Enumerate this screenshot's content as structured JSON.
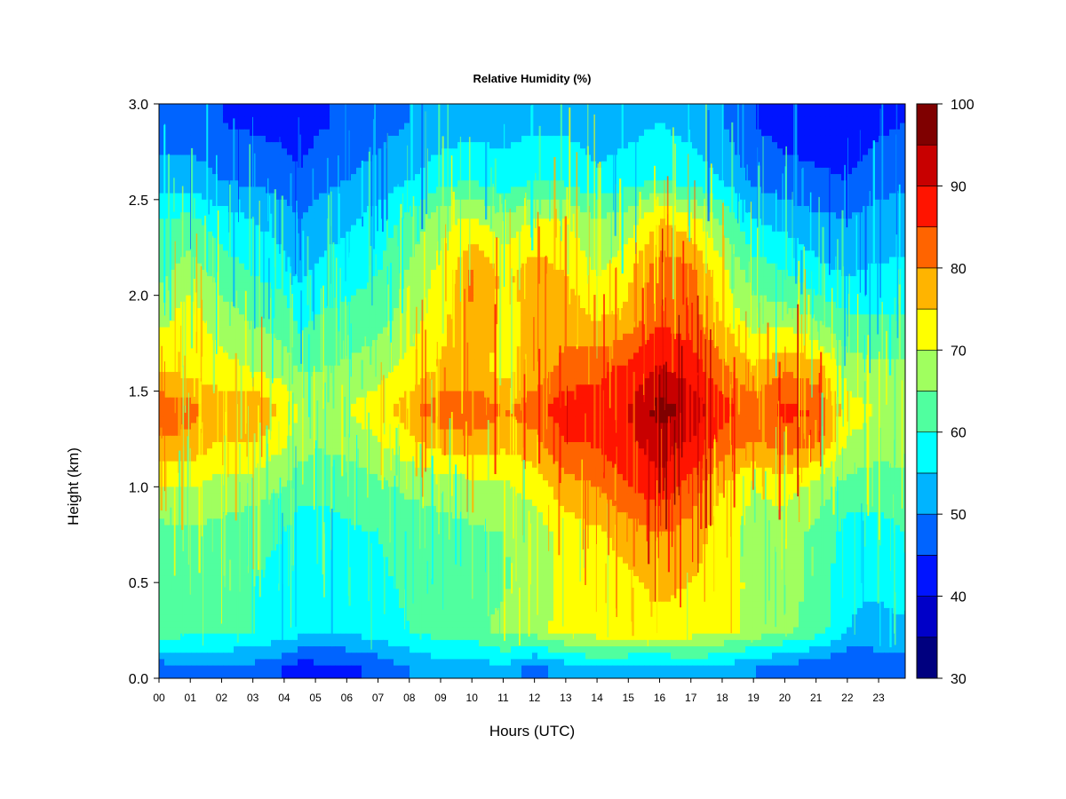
{
  "chart_data": {
    "type": "heatmap",
    "title": "Relative Humidity (%)",
    "xlabel": "Hours (UTC)",
    "ylabel": "Height (km)",
    "xlim": [
      0,
      23.85
    ],
    "ylim": [
      0.0,
      3.0
    ],
    "x_ticks": [
      "00",
      "01",
      "02",
      "03",
      "04",
      "05",
      "06",
      "07",
      "08",
      "09",
      "10",
      "11",
      "12",
      "13",
      "14",
      "15",
      "16",
      "17",
      "18",
      "19",
      "20",
      "21",
      "22",
      "23"
    ],
    "y_ticks": [
      "0.0",
      "0.5",
      "1.0",
      "1.5",
      "2.0",
      "2.5",
      "3.0"
    ],
    "colorbar": {
      "min": 30,
      "max": 100,
      "step": 5,
      "tick_labels": [
        "30",
        "40",
        "50",
        "60",
        "70",
        "80",
        "90",
        "100"
      ],
      "colors": [
        "#00007f",
        "#0000c8",
        "#0014ff",
        "#0064ff",
        "#00b4ff",
        "#00ffff",
        "#50ff9f",
        "#a0ff5f",
        "#ffff00",
        "#ffb400",
        "#ff6400",
        "#ff1400",
        "#c80000",
        "#7f0000"
      ]
    },
    "heights_km": [
      0.05,
      0.25,
      0.5,
      0.75,
      1.0,
      1.25,
      1.4,
      1.6,
      1.9,
      2.1,
      2.4,
      2.6,
      2.9
    ],
    "hours": [
      0,
      1,
      2,
      3,
      4,
      4.5,
      5,
      6,
      7,
      8,
      9,
      10,
      11,
      12,
      13,
      14,
      15,
      16,
      17,
      18,
      19,
      20,
      21,
      22,
      23,
      23.85
    ],
    "rh_percent": [
      [
        47,
        49,
        50,
        48,
        45,
        42,
        43,
        44,
        46,
        50,
        53,
        52,
        54,
        48,
        52,
        55,
        53,
        52,
        55,
        53,
        50,
        48,
        46,
        45,
        47,
        48
      ],
      [
        63,
        62,
        61,
        60,
        59,
        57,
        56,
        56,
        58,
        60,
        62,
        63,
        67,
        68,
        72,
        73,
        74,
        74,
        73,
        71,
        69,
        66,
        63,
        55,
        53,
        54
      ],
      [
        62,
        62,
        61,
        60,
        58,
        56,
        57,
        58,
        59,
        61,
        62,
        63,
        64,
        68,
        71,
        73,
        74,
        76,
        75,
        72,
        69,
        67,
        64,
        56,
        56,
        58
      ],
      [
        63,
        64,
        63,
        62,
        60,
        57,
        58,
        59,
        60,
        62,
        63,
        64,
        65,
        67,
        72,
        74,
        77,
        80,
        78,
        72,
        68,
        67,
        64,
        58,
        58,
        60
      ],
      [
        70,
        70,
        68,
        67,
        65,
        62,
        61,
        62,
        64,
        66,
        67,
        68,
        69,
        72,
        78,
        80,
        85,
        88,
        83,
        75,
        70,
        72,
        68,
        63,
        62,
        63
      ],
      [
        80,
        79,
        75,
        76,
        71,
        68,
        66,
        67,
        70,
        74,
        78,
        79,
        77,
        79,
        85,
        86,
        89,
        94,
        90,
        84,
        80,
        84,
        82,
        70,
        68,
        68
      ],
      [
        84,
        82,
        78,
        80,
        74,
        70,
        68,
        70,
        73,
        78,
        84,
        85,
        80,
        83,
        89,
        87,
        90,
        97,
        94,
        87,
        83,
        86,
        85,
        72,
        70,
        70
      ],
      [
        75,
        74,
        72,
        70,
        68,
        65,
        65,
        66,
        68,
        72,
        76,
        76,
        74,
        77,
        82,
        84,
        87,
        91,
        88,
        82,
        76,
        80,
        78,
        68,
        66,
        66
      ],
      [
        68,
        72,
        67,
        64,
        62,
        58,
        60,
        61,
        63,
        67,
        73,
        80,
        73,
        76,
        78,
        74,
        76,
        84,
        82,
        74,
        67,
        67,
        64,
        60,
        60,
        60
      ],
      [
        64,
        68,
        63,
        60,
        58,
        54,
        56,
        58,
        60,
        66,
        72,
        81,
        74,
        78,
        75,
        70,
        74,
        84,
        82,
        72,
        63,
        61,
        57,
        55,
        56,
        56
      ],
      [
        60,
        61,
        57,
        55,
        52,
        50,
        52,
        54,
        57,
        61,
        68,
        71,
        66,
        70,
        70,
        65,
        67,
        75,
        72,
        64,
        55,
        53,
        51,
        50,
        52,
        53
      ],
      [
        52,
        53,
        50,
        49,
        48,
        46,
        48,
        50,
        52,
        55,
        58,
        60,
        57,
        60,
        59,
        56,
        58,
        60,
        58,
        55,
        49,
        47,
        46,
        45,
        48,
        49
      ],
      [
        47,
        47,
        45,
        44,
        43,
        42,
        44,
        46,
        48,
        50,
        52,
        53,
        53,
        54,
        54,
        52,
        53,
        55,
        53,
        50,
        45,
        43,
        42,
        42,
        44,
        45
      ]
    ]
  }
}
